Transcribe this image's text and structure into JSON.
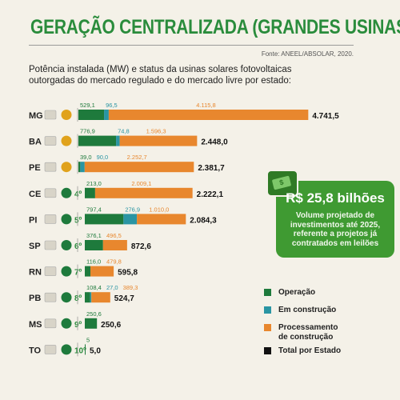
{
  "header": {
    "title": "GERAÇÃO CENTRALIZADA (GRANDES USINAS)",
    "source": "Fonte: ANEEL/ABSOLAR, 2020.",
    "subtitle_line1": "Potência instalada (MW) e status da usinas solares fotovoltaicas",
    "subtitle_line2": "outorgadas do mercado regulado e do mercado livre por estado:"
  },
  "colors": {
    "operacao": "#1e7a3c",
    "construcao": "#2a95a3",
    "processamento": "#e8872e",
    "total": "#111111",
    "brand": "#2a8c3c"
  },
  "chart_data": {
    "type": "bar",
    "orientation": "horizontal",
    "stacked": true,
    "categories": [
      "MG",
      "BA",
      "PE",
      "CE",
      "PI",
      "SP",
      "RN",
      "PB",
      "MS",
      "TO"
    ],
    "ranks": [
      "",
      "",
      "",
      "4º",
      "5º",
      "6º",
      "7º",
      "8º",
      "9º",
      "10º"
    ],
    "series": [
      {
        "name": "Operação",
        "values": [
          529.1,
          776.9,
          39.0,
          213.0,
          797.4,
          376.1,
          116.0,
          108.4,
          250.6,
          5
        ],
        "labels": [
          "529,1",
          "776,9",
          "39,0",
          "213,0",
          "797,4",
          "376,1",
          "116,0",
          "108,4",
          "250,6",
          "5"
        ]
      },
      {
        "name": "Em construção",
        "values": [
          96.5,
          74.8,
          90.0,
          0,
          276.9,
          0,
          0,
          27.0,
          0,
          0
        ],
        "labels": [
          "96,5",
          "74,8",
          "90,0",
          "",
          "276,9",
          "",
          "",
          "27,0",
          "",
          ""
        ]
      },
      {
        "name": "Processamento de construção",
        "values": [
          4115.8,
          1596.3,
          2252.7,
          2009.1,
          1010.0,
          496.5,
          479.8,
          389.3,
          0,
          0
        ],
        "labels": [
          "4.115,8",
          "1.596,3",
          "2.252,7",
          "2.009,1",
          "1.010,0",
          "496,5",
          "479,8",
          "389,3",
          "",
          ""
        ]
      }
    ],
    "totals": [
      4741.5,
      2448.0,
      2381.7,
      2222.1,
      2084.3,
      872.6,
      595.8,
      524.7,
      250.6,
      5.0
    ],
    "total_labels": [
      "4.741,5",
      "2.448,0",
      "2.381,7",
      "2.222,1",
      "2.084,3",
      "872,6",
      "595,8",
      "524,7",
      "250,6",
      "5,0"
    ],
    "unit": "MW"
  },
  "callout": {
    "value": "R$ 25,8 bilhões",
    "text_line1": "Volume projetado de",
    "text_line2": "investimentos até 2025,",
    "text_line3": "referente a projetos já",
    "text_line4": "contratados em leilões"
  },
  "legend": {
    "operacao": "Operação",
    "construcao": "Em construção",
    "processamento_line1": "Processamento",
    "processamento_line2": "de construção",
    "total": "Total por Estado"
  }
}
